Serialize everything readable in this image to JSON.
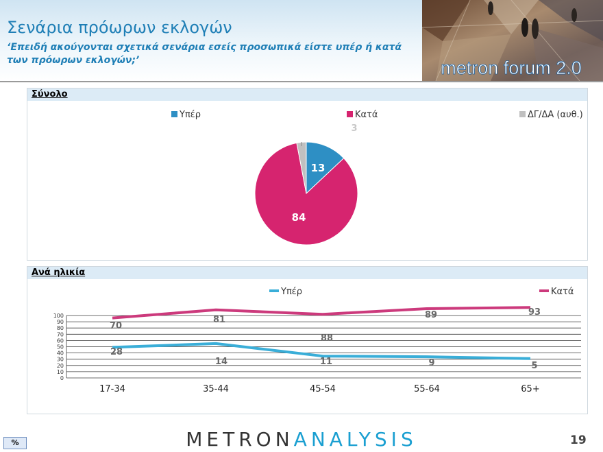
{
  "header": {
    "title": "Σενάρια πρόωρων εκλογών",
    "subtitle": "‘Επειδή ακούγονται σχετικά σενάρια εσείς προσωπικά είστε υπέρ ή κατά των πρόωρων εκλογών;’",
    "banner_text": "metron forum 2.0"
  },
  "panel_total": {
    "title": "Σύνολο"
  },
  "panel_age": {
    "title": "Ανά ηλικία"
  },
  "footer": {
    "badge": "%",
    "logo_left": "METRON",
    "logo_right": "ANALYSIS",
    "page_number": "19"
  },
  "colors": {
    "yper": "#2e8fc4",
    "kata": "#d6246f",
    "dk": "#c0c0c0",
    "line_yper": "#3aaed8",
    "line_kata": "#cc3a7c"
  },
  "chart_data": [
    {
      "type": "pie",
      "title": "Σύνολο",
      "legend": [
        "Υπέρ",
        "Κατά",
        "ΔΓ/ΔΑ (αυθ.)"
      ],
      "values": [
        13,
        84,
        3
      ],
      "labels": [
        "13",
        "84",
        "3"
      ],
      "legend_position": "top"
    },
    {
      "type": "line",
      "title": "Ανά ηλικία",
      "categories": [
        "17-34",
        "35-44",
        "45-54",
        "55-64",
        "65+"
      ],
      "ylim": [
        0,
        100
      ],
      "yticks": [
        0,
        10,
        20,
        30,
        40,
        50,
        60,
        70,
        80,
        90,
        100
      ],
      "series": [
        {
          "name": "Υπέρ",
          "values": [
            28,
            14,
            11,
            9,
            5
          ]
        },
        {
          "name": "Κατά",
          "values": [
            70,
            81,
            88,
            89,
            93
          ]
        }
      ],
      "legend_position": "top-right"
    }
  ]
}
